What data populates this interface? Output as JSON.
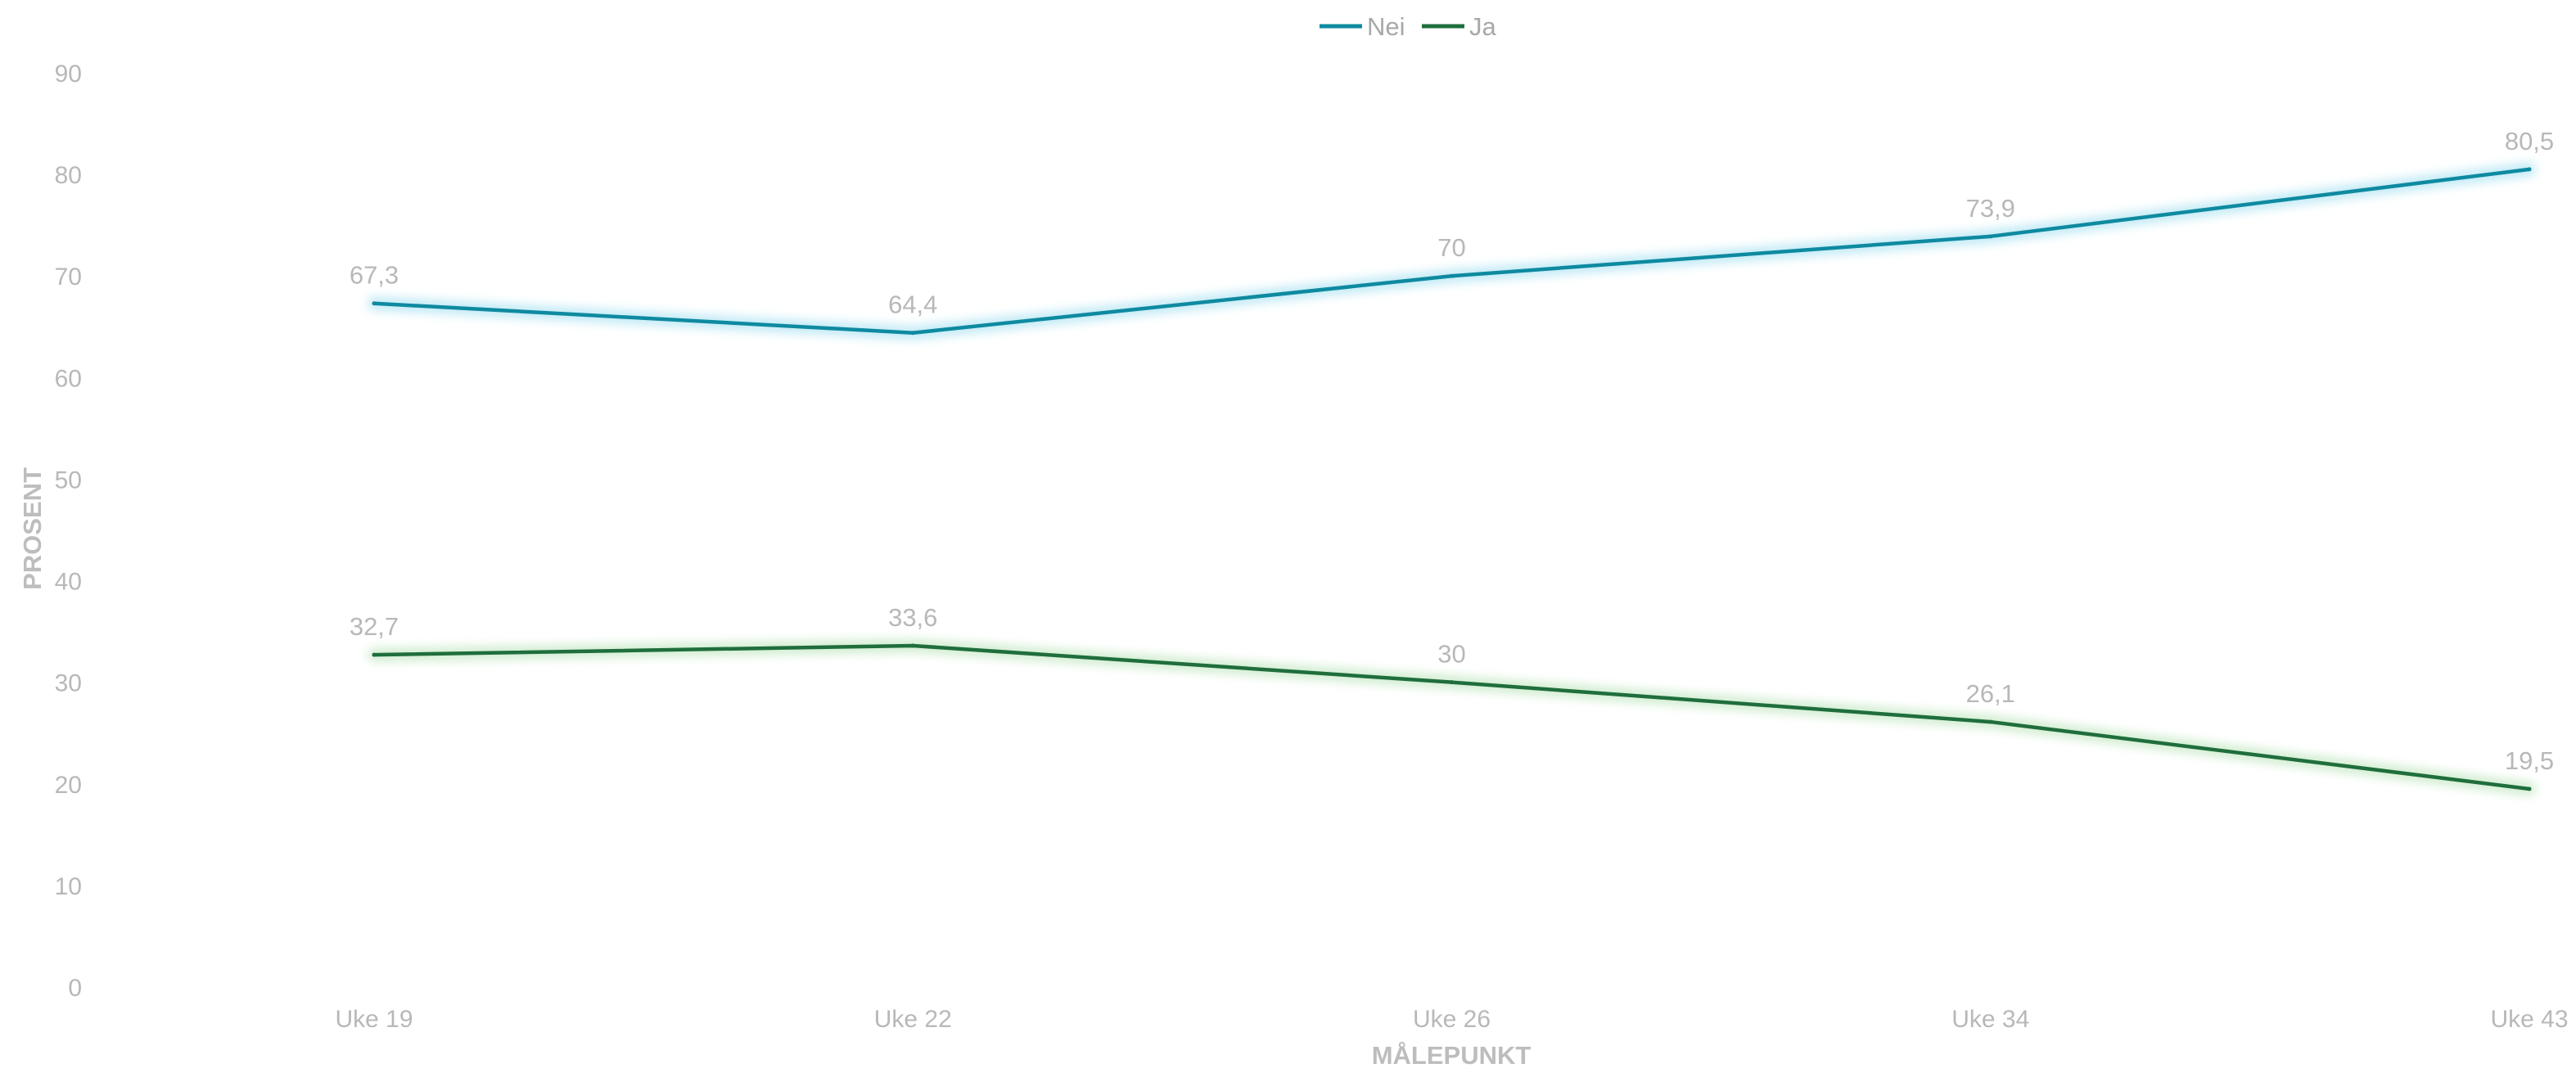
{
  "chart_data": {
    "type": "line",
    "categories": [
      "Uke 19",
      "Uke 22",
      "Uke 26",
      "Uke 34",
      "Uke 43"
    ],
    "series": [
      {
        "name": "Nei",
        "values": [
          67.3,
          64.4,
          70,
          73.9,
          80.5
        ],
        "labels": [
          "67,3",
          "64,4",
          "70",
          "73,9",
          "80,5"
        ],
        "color": "#0e8aa0",
        "glow": "#bfe9f5"
      },
      {
        "name": "Ja",
        "values": [
          32.7,
          33.6,
          30,
          26.1,
          19.5
        ],
        "labels": [
          "32,7",
          "33,6",
          "30",
          "26,1",
          "19,5"
        ],
        "color": "#1f6e3b",
        "glow": "#cfeccf"
      }
    ],
    "xlabel": "MÅLEPUNKT",
    "ylabel": "PROSENT",
    "ylim": [
      0,
      90
    ],
    "yticks": [
      "0",
      "10",
      "20",
      "30",
      "40",
      "50",
      "60",
      "70",
      "80",
      "90"
    ],
    "grid": false,
    "legend": "top-center"
  }
}
